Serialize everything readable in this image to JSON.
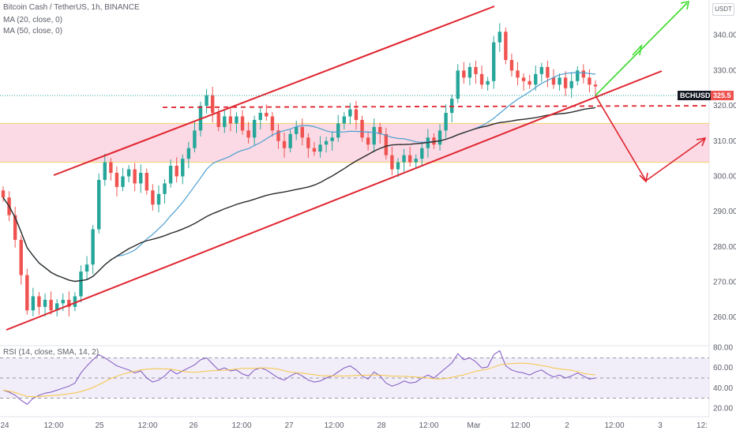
{
  "header": {
    "title": "Bitcoin Cash / TetherUS, 1h, BINANCE",
    "ma1": "MA (20, close, 0)",
    "ma2": "MA (50, close, 0)",
    "rsi": "RSI (14, close, SMA, 14, 2)",
    "currency": "USDT"
  },
  "price_badge": {
    "symbol": "BCHUSDT",
    "value": "325.5"
  },
  "chart_data": [
    {
      "type": "candlestick",
      "title": "Bitcoin Cash / TetherUS, 1h, BINANCE",
      "ylim": [
        252,
        350
      ],
      "y_ticks": [
        260,
        270,
        280,
        290,
        300,
        310,
        320,
        330,
        340
      ],
      "x_ticks": [
        "24",
        "12:00",
        "25",
        "12:00",
        "26",
        "12:00",
        "27",
        "12:00",
        "28",
        "12:00",
        "Mar",
        "12:00",
        "2",
        "12:00",
        "3",
        "12:"
      ],
      "last_price": 325.5,
      "close": [
        294,
        289,
        282,
        272,
        262,
        266,
        263,
        265,
        262,
        264,
        265,
        263,
        266,
        273,
        275,
        285,
        299,
        304,
        301,
        297,
        300,
        302,
        298,
        301,
        296,
        292,
        295,
        298,
        303,
        300,
        305,
        308,
        313,
        320,
        323,
        318,
        314,
        317,
        315,
        317,
        313,
        311,
        316,
        318,
        317,
        313,
        310,
        308,
        312,
        314,
        311,
        308,
        307,
        309,
        310,
        311,
        315,
        317,
        319,
        316,
        311,
        309,
        314,
        312,
        306,
        302,
        304,
        306,
        304,
        305,
        308,
        311,
        309,
        313,
        318,
        322,
        330,
        328,
        331,
        329,
        326,
        327,
        338,
        341,
        333,
        330,
        328,
        327,
        326,
        329,
        331,
        328,
        326,
        328,
        325,
        327,
        330,
        328,
        326,
        325.5
      ],
      "zones": [
        {
          "from": 304,
          "to": 315,
          "color": "#f8bbd0"
        }
      ],
      "series": [
        {
          "name": "MA (20, close, 0)",
          "color": "#4a9fd1"
        },
        {
          "name": "MA (50, close, 0)",
          "color": "#2b2b2b"
        }
      ]
    },
    {
      "type": "line",
      "title": "RSI (14, close, SMA, 14, 2)",
      "ylim": [
        18,
        82
      ],
      "y_ticks": [
        20,
        40,
        60,
        80
      ],
      "bands": [
        70,
        50,
        30
      ],
      "values": [
        38,
        36,
        33,
        28,
        24,
        30,
        33,
        35,
        36,
        38,
        40,
        42,
        45,
        55,
        62,
        68,
        73,
        70,
        66,
        62,
        60,
        58,
        55,
        57,
        50,
        46,
        48,
        52,
        58,
        54,
        57,
        60,
        63,
        68,
        70,
        64,
        58,
        60,
        57,
        58,
        54,
        52,
        58,
        60,
        58,
        54,
        50,
        48,
        52,
        55,
        52,
        48,
        46,
        47,
        50,
        52,
        56,
        60,
        62,
        58,
        52,
        49,
        56,
        52,
        45,
        42,
        44,
        47,
        45,
        46,
        50,
        53,
        50,
        55,
        60,
        65,
        74,
        68,
        70,
        66,
        60,
        61,
        73,
        77,
        62,
        58,
        56,
        55,
        53,
        56,
        58,
        54,
        51,
        53,
        50,
        52,
        55,
        52,
        49,
        50
      ],
      "series": [
        {
          "name": "RSI",
          "color": "#7e57c2"
        },
        {
          "name": "RSI SMA",
          "color": "#f5c542"
        }
      ]
    }
  ]
}
